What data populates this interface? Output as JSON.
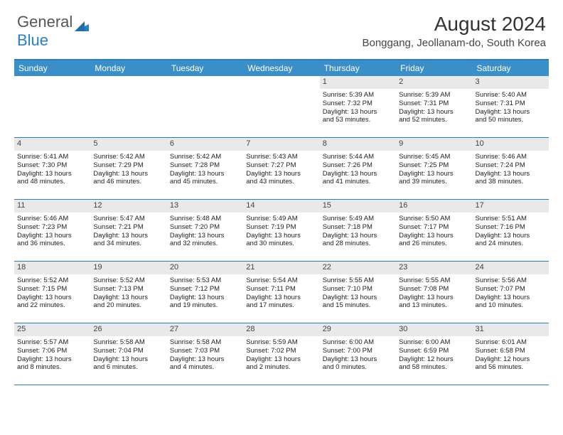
{
  "logo": {
    "part1": "General",
    "part2": "Blue"
  },
  "title": "August 2024",
  "location": "Bonggang, Jeollanam-do, South Korea",
  "colors": {
    "header_bg": "#3b8fc9",
    "border": "#2a7fbf",
    "daynum_bg": "#e9e9e9",
    "text": "#222222"
  },
  "day_names": [
    "Sunday",
    "Monday",
    "Tuesday",
    "Wednesday",
    "Thursday",
    "Friday",
    "Saturday"
  ],
  "weeks": [
    [
      null,
      null,
      null,
      null,
      {
        "d": "1",
        "sr": "Sunrise: 5:39 AM",
        "ss": "Sunset: 7:32 PM",
        "dl1": "Daylight: 13 hours",
        "dl2": "and 53 minutes."
      },
      {
        "d": "2",
        "sr": "Sunrise: 5:39 AM",
        "ss": "Sunset: 7:31 PM",
        "dl1": "Daylight: 13 hours",
        "dl2": "and 52 minutes."
      },
      {
        "d": "3",
        "sr": "Sunrise: 5:40 AM",
        "ss": "Sunset: 7:31 PM",
        "dl1": "Daylight: 13 hours",
        "dl2": "and 50 minutes."
      }
    ],
    [
      {
        "d": "4",
        "sr": "Sunrise: 5:41 AM",
        "ss": "Sunset: 7:30 PM",
        "dl1": "Daylight: 13 hours",
        "dl2": "and 48 minutes."
      },
      {
        "d": "5",
        "sr": "Sunrise: 5:42 AM",
        "ss": "Sunset: 7:29 PM",
        "dl1": "Daylight: 13 hours",
        "dl2": "and 46 minutes."
      },
      {
        "d": "6",
        "sr": "Sunrise: 5:42 AM",
        "ss": "Sunset: 7:28 PM",
        "dl1": "Daylight: 13 hours",
        "dl2": "and 45 minutes."
      },
      {
        "d": "7",
        "sr": "Sunrise: 5:43 AM",
        "ss": "Sunset: 7:27 PM",
        "dl1": "Daylight: 13 hours",
        "dl2": "and 43 minutes."
      },
      {
        "d": "8",
        "sr": "Sunrise: 5:44 AM",
        "ss": "Sunset: 7:26 PM",
        "dl1": "Daylight: 13 hours",
        "dl2": "and 41 minutes."
      },
      {
        "d": "9",
        "sr": "Sunrise: 5:45 AM",
        "ss": "Sunset: 7:25 PM",
        "dl1": "Daylight: 13 hours",
        "dl2": "and 39 minutes."
      },
      {
        "d": "10",
        "sr": "Sunrise: 5:46 AM",
        "ss": "Sunset: 7:24 PM",
        "dl1": "Daylight: 13 hours",
        "dl2": "and 38 minutes."
      }
    ],
    [
      {
        "d": "11",
        "sr": "Sunrise: 5:46 AM",
        "ss": "Sunset: 7:23 PM",
        "dl1": "Daylight: 13 hours",
        "dl2": "and 36 minutes."
      },
      {
        "d": "12",
        "sr": "Sunrise: 5:47 AM",
        "ss": "Sunset: 7:21 PM",
        "dl1": "Daylight: 13 hours",
        "dl2": "and 34 minutes."
      },
      {
        "d": "13",
        "sr": "Sunrise: 5:48 AM",
        "ss": "Sunset: 7:20 PM",
        "dl1": "Daylight: 13 hours",
        "dl2": "and 32 minutes."
      },
      {
        "d": "14",
        "sr": "Sunrise: 5:49 AM",
        "ss": "Sunset: 7:19 PM",
        "dl1": "Daylight: 13 hours",
        "dl2": "and 30 minutes."
      },
      {
        "d": "15",
        "sr": "Sunrise: 5:49 AM",
        "ss": "Sunset: 7:18 PM",
        "dl1": "Daylight: 13 hours",
        "dl2": "and 28 minutes."
      },
      {
        "d": "16",
        "sr": "Sunrise: 5:50 AM",
        "ss": "Sunset: 7:17 PM",
        "dl1": "Daylight: 13 hours",
        "dl2": "and 26 minutes."
      },
      {
        "d": "17",
        "sr": "Sunrise: 5:51 AM",
        "ss": "Sunset: 7:16 PM",
        "dl1": "Daylight: 13 hours",
        "dl2": "and 24 minutes."
      }
    ],
    [
      {
        "d": "18",
        "sr": "Sunrise: 5:52 AM",
        "ss": "Sunset: 7:15 PM",
        "dl1": "Daylight: 13 hours",
        "dl2": "and 22 minutes."
      },
      {
        "d": "19",
        "sr": "Sunrise: 5:52 AM",
        "ss": "Sunset: 7:13 PM",
        "dl1": "Daylight: 13 hours",
        "dl2": "and 20 minutes."
      },
      {
        "d": "20",
        "sr": "Sunrise: 5:53 AM",
        "ss": "Sunset: 7:12 PM",
        "dl1": "Daylight: 13 hours",
        "dl2": "and 19 minutes."
      },
      {
        "d": "21",
        "sr": "Sunrise: 5:54 AM",
        "ss": "Sunset: 7:11 PM",
        "dl1": "Daylight: 13 hours",
        "dl2": "and 17 minutes."
      },
      {
        "d": "22",
        "sr": "Sunrise: 5:55 AM",
        "ss": "Sunset: 7:10 PM",
        "dl1": "Daylight: 13 hours",
        "dl2": "and 15 minutes."
      },
      {
        "d": "23",
        "sr": "Sunrise: 5:55 AM",
        "ss": "Sunset: 7:08 PM",
        "dl1": "Daylight: 13 hours",
        "dl2": "and 13 minutes."
      },
      {
        "d": "24",
        "sr": "Sunrise: 5:56 AM",
        "ss": "Sunset: 7:07 PM",
        "dl1": "Daylight: 13 hours",
        "dl2": "and 10 minutes."
      }
    ],
    [
      {
        "d": "25",
        "sr": "Sunrise: 5:57 AM",
        "ss": "Sunset: 7:06 PM",
        "dl1": "Daylight: 13 hours",
        "dl2": "and 8 minutes."
      },
      {
        "d": "26",
        "sr": "Sunrise: 5:58 AM",
        "ss": "Sunset: 7:04 PM",
        "dl1": "Daylight: 13 hours",
        "dl2": "and 6 minutes."
      },
      {
        "d": "27",
        "sr": "Sunrise: 5:58 AM",
        "ss": "Sunset: 7:03 PM",
        "dl1": "Daylight: 13 hours",
        "dl2": "and 4 minutes."
      },
      {
        "d": "28",
        "sr": "Sunrise: 5:59 AM",
        "ss": "Sunset: 7:02 PM",
        "dl1": "Daylight: 13 hours",
        "dl2": "and 2 minutes."
      },
      {
        "d": "29",
        "sr": "Sunrise: 6:00 AM",
        "ss": "Sunset: 7:00 PM",
        "dl1": "Daylight: 13 hours",
        "dl2": "and 0 minutes."
      },
      {
        "d": "30",
        "sr": "Sunrise: 6:00 AM",
        "ss": "Sunset: 6:59 PM",
        "dl1": "Daylight: 12 hours",
        "dl2": "and 58 minutes."
      },
      {
        "d": "31",
        "sr": "Sunrise: 6:01 AM",
        "ss": "Sunset: 6:58 PM",
        "dl1": "Daylight: 12 hours",
        "dl2": "and 56 minutes."
      }
    ]
  ]
}
